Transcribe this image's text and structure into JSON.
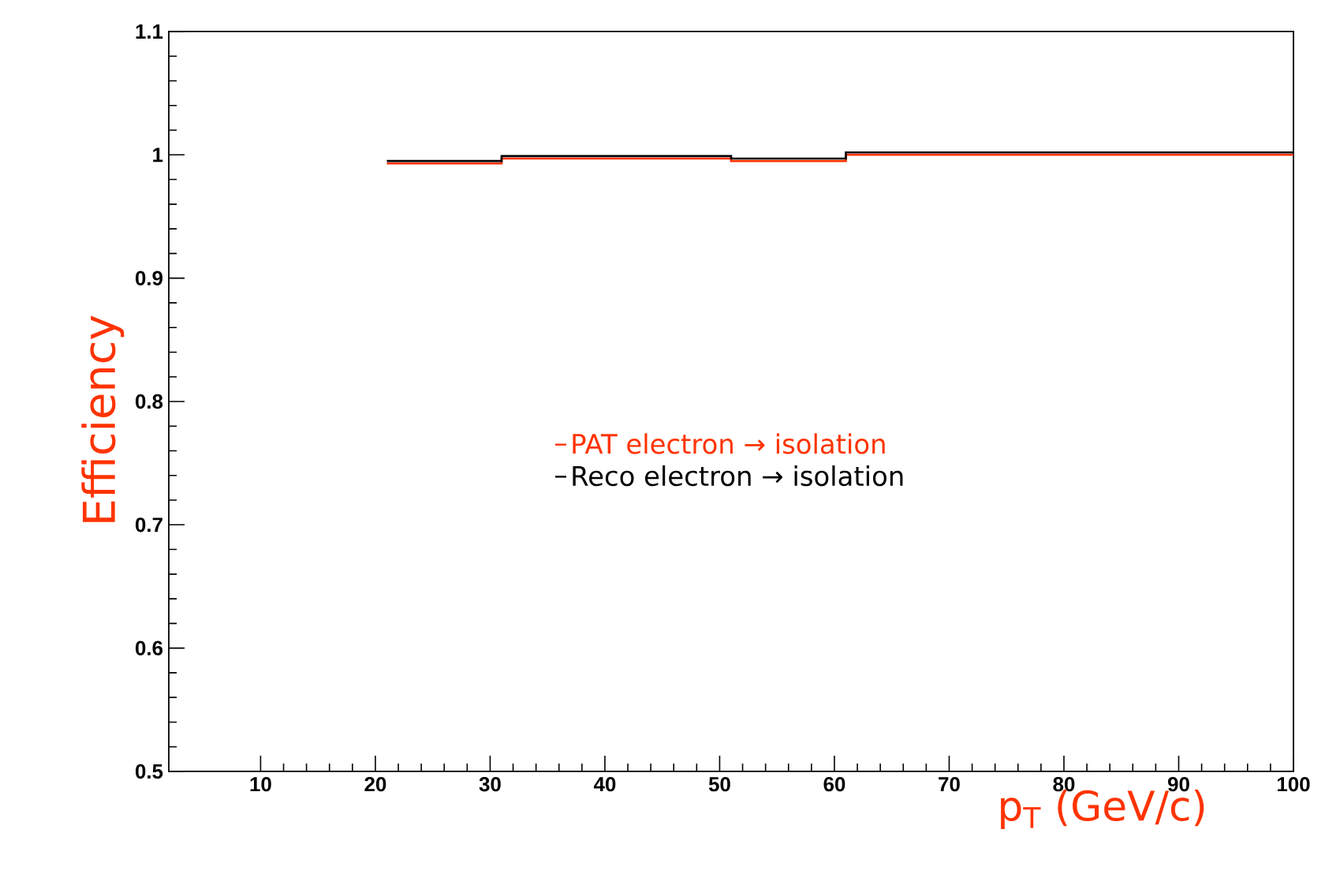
{
  "chart_data": {
    "type": "histogram",
    "xlabel": "p$_{T}$  (GeV/c)",
    "ylabel": "Efficiency",
    "bins": [
      21,
      31,
      41,
      51,
      61,
      71,
      81,
      91,
      100
    ],
    "series": [
      {
        "name": "PAT electron → isolation",
        "color": "#ff3300",
        "values": [
          0.993,
          0.997,
          0.997,
          0.995,
          1.0,
          1.0,
          1.0,
          1.0
        ]
      },
      {
        "name": "Reco electron → isolation",
        "color": "#000000",
        "values": [
          0.995,
          0.999,
          0.999,
          0.997,
          1.002,
          1.002,
          1.002,
          1.002
        ]
      }
    ],
    "xlim": [
      2,
      100
    ],
    "ylim": [
      0.5,
      1.1
    ],
    "xticks": [
      10,
      20,
      30,
      40,
      50,
      60,
      70,
      80,
      90,
      100
    ],
    "yticks": [
      0.5,
      0.6,
      0.7,
      0.8,
      0.9,
      1,
      1.1
    ],
    "grid": false,
    "legend": "center"
  }
}
